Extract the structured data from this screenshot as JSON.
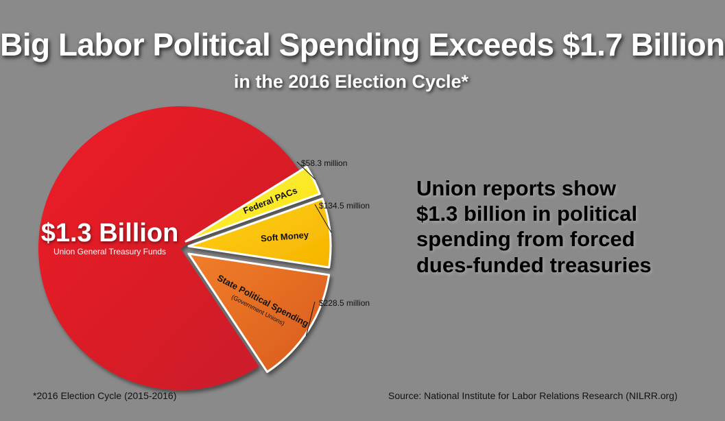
{
  "title": "Big Labor Political Spending Exceeds $1.7 Billion",
  "subtitle": "in the 2016 Election Cycle*",
  "callout_lines": [
    "Union reports show",
    "$1.3 billion in political",
    "spending from forced",
    "dues-funded treasuries"
  ],
  "footnote": "*2016 Election Cycle (2015-2016)",
  "source": "Source:  National Institute for Labor Relations Research (NILRR.org)",
  "chart_data": {
    "type": "pie",
    "unit": "million USD",
    "slices": [
      {
        "label_lines": [
          "$1.3 Billion"
        ],
        "sublabel": "Union General Treasury Funds",
        "value": 1300,
        "value_label": "",
        "color_a": "#c81d2a",
        "color_b": "#ee1c25",
        "exploded": false
      },
      {
        "label_lines": [
          "Federal PACs"
        ],
        "sublabel": "",
        "value": 58.3,
        "value_label": "$58.3 million",
        "color_a": "#ffe400",
        "color_b": "#f6ef5a",
        "exploded": true
      },
      {
        "label_lines": [
          "Soft Money"
        ],
        "sublabel": "",
        "value": 134.5,
        "value_label": "$134.5 million",
        "color_a": "#f6b400",
        "color_b": "#ffd21a",
        "exploded": true
      },
      {
        "label_lines": [
          "State Political Spending"
        ],
        "sublabel": "(Government Unions)",
        "value": 228.5,
        "value_label": "$228.5 million",
        "color_a": "#d95b1c",
        "color_b": "#f07e2a",
        "exploded": true
      }
    ]
  }
}
